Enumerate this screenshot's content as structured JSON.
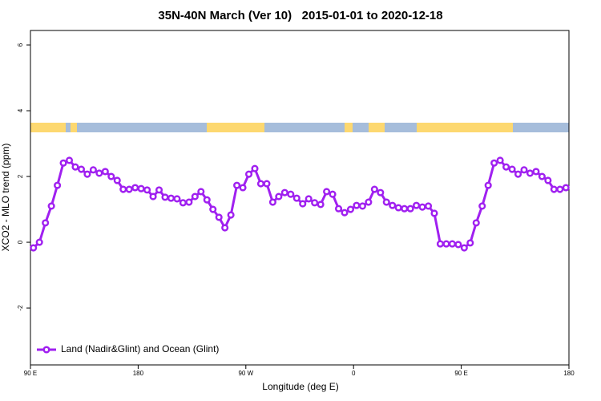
{
  "chart_data": {
    "type": "line",
    "title": "35N-40N March (Ver 10)   2015-01-01 to 2020-12-18",
    "xlabel": "Longitude (deg E)",
    "ylabel": "XCO2 - MLO trend (ppm)",
    "xlim": [
      90,
      540
    ],
    "xticks": [
      {
        "value": 90,
        "label": "90 E"
      },
      180,
      {
        "value": 270,
        "label": "90 W"
      },
      {
        "value": 360,
        "label": "0"
      },
      {
        "value": 450,
        "label": "90 E"
      },
      {
        "value": 540,
        "label": "180"
      }
    ],
    "ylim": [
      -3.73,
      6.44
    ],
    "yticks": [
      6,
      4,
      2,
      0,
      -2
    ],
    "legend": "bottom-left",
    "x": [
      92.5,
      97.5,
      102.5,
      107.5,
      112.5,
      117.5,
      122.5,
      127.5,
      132.5,
      137.5,
      142.5,
      147.5,
      152.5,
      157.5,
      162.5,
      167.5,
      172.5,
      177.5,
      182.5,
      187.5,
      192.5,
      197.5,
      202.5,
      207.5,
      212.5,
      217.5,
      222.5,
      227.5,
      232.5,
      237.5,
      242.5,
      247.5,
      252.5,
      257.5,
      262.5,
      267.5,
      272.5,
      277.5,
      282.5,
      287.5,
      292.5,
      297.5,
      302.5,
      307.5,
      312.5,
      317.5,
      322.5,
      327.5,
      332.5,
      337.5,
      342.5,
      347.5,
      352.5,
      357.5,
      362.5,
      367.5,
      372.5,
      377.5,
      382.5,
      387.5,
      392.5,
      397.5,
      402.5,
      407.5,
      412.5,
      417.5,
      422.5,
      427.5,
      432.5,
      437.5,
      442.5,
      447.5,
      452.5,
      457.5,
      462.5,
      467.5,
      472.5,
      477.5,
      482.5,
      487.5,
      492.5,
      497.5,
      502.5,
      507.5,
      512.5,
      517.5,
      522.5,
      527.5,
      532.5,
      537.5
    ],
    "series": [
      {
        "name": "Land (Nadir&Glint) and Ocean (Glint)",
        "color": "#a020f0",
        "values": [
          -0.17,
          0,
          0.59,
          1.1,
          1.73,
          2.41,
          2.49,
          2.29,
          2.22,
          2.07,
          2.2,
          2.1,
          2.15,
          2.0,
          1.88,
          1.61,
          1.61,
          1.66,
          1.63,
          1.59,
          1.39,
          1.59,
          1.37,
          1.34,
          1.32,
          1.2,
          1.22,
          1.39,
          1.54,
          1.29,
          1.0,
          0.76,
          0.44,
          0.83,
          1.73,
          1.66,
          2.07,
          2.24,
          1.78,
          1.78,
          1.22,
          1.39,
          1.51,
          1.46,
          1.34,
          1.17,
          1.32,
          1.2,
          1.15,
          1.54,
          1.46,
          1.02,
          0.9,
          1.0,
          1.12,
          1.1,
          1.22,
          1.61,
          1.51,
          1.22,
          1.12,
          1.05,
          1.02,
          1.02,
          1.12,
          1.07,
          1.1,
          0.88,
          -0.05,
          -0.05,
          -0.05,
          -0.07,
          -0.17,
          -0.02,
          0.59,
          1.1,
          1.73,
          2.41,
          2.49,
          2.29,
          2.22,
          2.07,
          2.2,
          2.1,
          2.15,
          2.0,
          1.88,
          1.61,
          1.61,
          1.66
        ]
      }
    ]
  }
}
